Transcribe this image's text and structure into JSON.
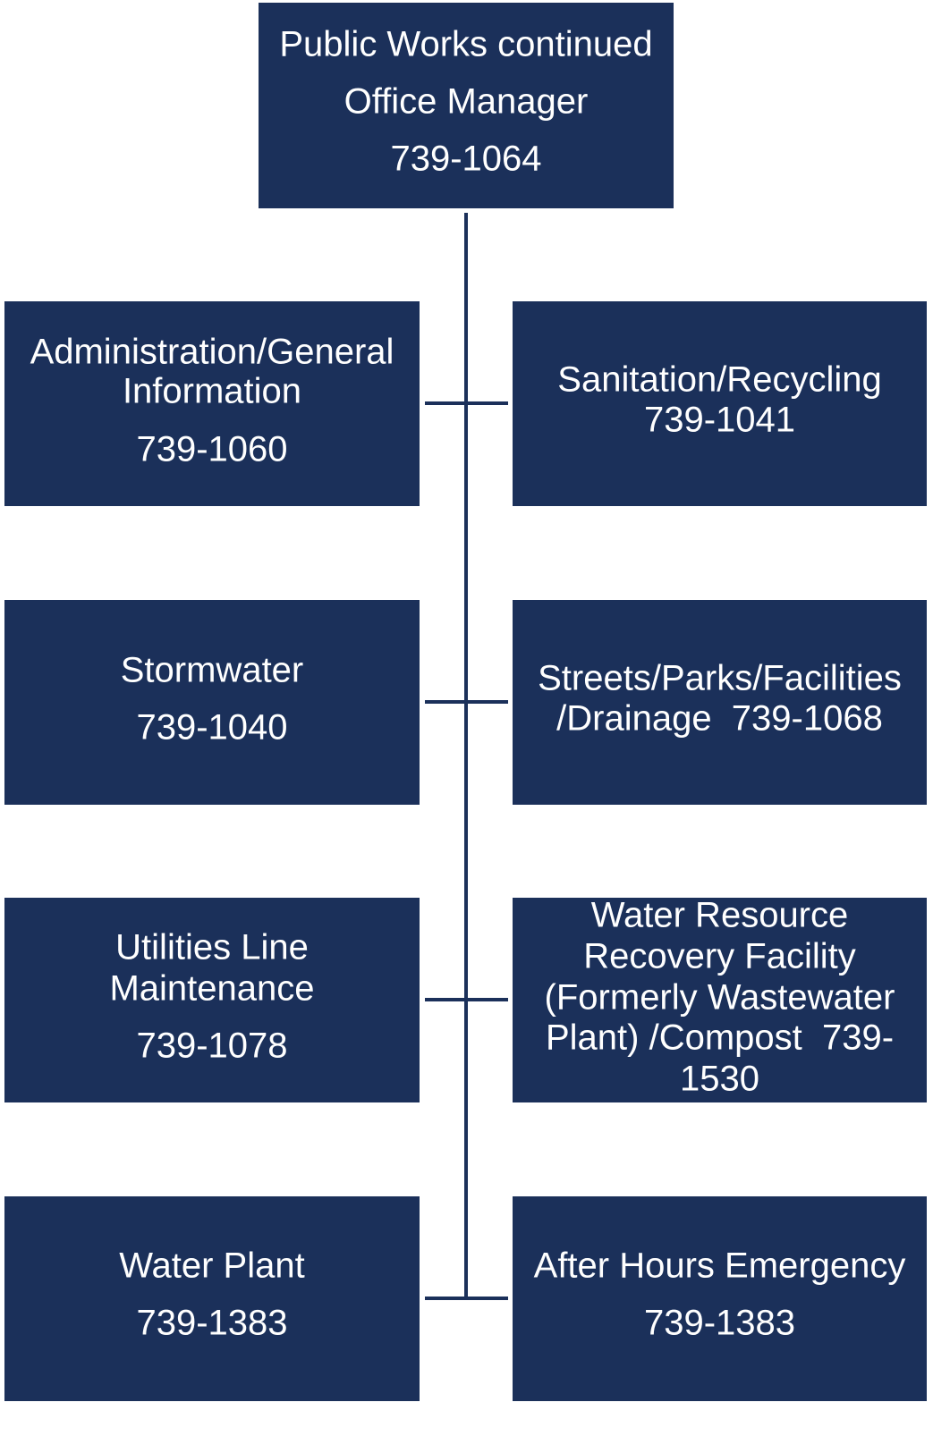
{
  "nodes": [
    {
      "lines": [
        "Public Works continued",
        "Office Manager",
        "739-1064"
      ]
    },
    {
      "lines": [
        "Administration/General",
        "Information",
        "739-1060"
      ]
    },
    {
      "lines": [
        "Sanitation/Recycling",
        "739-1041"
      ]
    },
    {
      "lines": [
        "Stormwater",
        "739-1040"
      ]
    },
    {
      "lines": [
        "Streets/Parks/Facilities",
        "/Drainage  739-1068"
      ]
    },
    {
      "lines": [
        "Utilities Line",
        "Maintenance",
        "739-1078"
      ]
    },
    {
      "lines": [
        "Water Resource",
        "Recovery Facility",
        "(Formerly Wastewater",
        "Plant) /Compost  739-",
        "1530"
      ]
    },
    {
      "lines": [
        "Water Plant",
        "739-1383"
      ]
    },
    {
      "lines": [
        "After Hours Emergency",
        "739-1383"
      ]
    }
  ]
}
